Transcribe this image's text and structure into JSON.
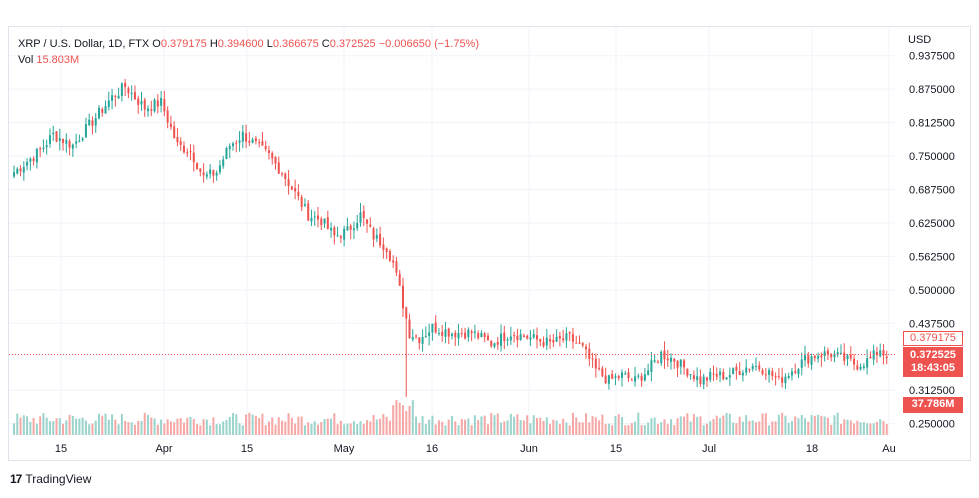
{
  "legend": {
    "symbol": "XRP / U.S. Dollar, 1D, FTX",
    "open_label": "O",
    "open_value": "0.379175",
    "high_label": "H",
    "high_value": "0.394600",
    "low_label": "L",
    "low_value": "0.366675",
    "close_label": "C",
    "close_value": "0.372525",
    "change": "−0.006650 (−1.75%)",
    "vol_label": "Vol",
    "vol_value": "15.803M"
  },
  "price_axis": {
    "currency": "USD",
    "last_value_tag": "0.379175",
    "close_tag": "0.372525",
    "countdown_tag": "18:43:05",
    "volume_tag": "37.786M"
  },
  "brand": {
    "name": "TradingView",
    "logo_text": "17"
  },
  "colors": {
    "up": "#26a69a",
    "down": "#ef5350",
    "up_volume": "#9bd4cd",
    "down_volume": "#f5a8a6",
    "grid": "#f0f3fa"
  },
  "chart_data": {
    "type": "candlestick",
    "x_ticks": [
      "15",
      "Apr",
      "15",
      "May",
      "16",
      "Jun",
      "15",
      "Jul",
      "18",
      "Au"
    ],
    "y_ticks": [
      "0.937500",
      "0.875000",
      "0.812500",
      "0.750000",
      "0.687500",
      "0.625000",
      "0.562500",
      "0.500000",
      "0.437500",
      "0.312500",
      "0.250000"
    ],
    "ylim": [
      0.24,
      0.95
    ],
    "last_price": 0.372525,
    "anchors": [
      [
        0,
        0.72
      ],
      [
        8,
        0.76
      ],
      [
        12,
        0.79
      ],
      [
        18,
        0.77
      ],
      [
        22,
        0.8
      ],
      [
        26,
        0.83
      ],
      [
        30,
        0.86
      ],
      [
        34,
        0.88
      ],
      [
        40,
        0.84
      ],
      [
        45,
        0.85
      ],
      [
        50,
        0.77
      ],
      [
        54,
        0.76
      ],
      [
        58,
        0.71
      ],
      [
        62,
        0.72
      ],
      [
        66,
        0.77
      ],
      [
        70,
        0.79
      ],
      [
        74,
        0.77
      ],
      [
        78,
        0.75
      ],
      [
        82,
        0.72
      ],
      [
        86,
        0.68
      ],
      [
        90,
        0.64
      ],
      [
        94,
        0.63
      ],
      [
        98,
        0.6
      ],
      [
        102,
        0.61
      ],
      [
        106,
        0.64
      ],
      [
        110,
        0.6
      ],
      [
        114,
        0.58
      ],
      [
        116,
        0.55
      ],
      [
        118,
        0.5
      ],
      [
        121,
        0.42
      ],
      [
        124,
        0.41
      ],
      [
        128,
        0.43
      ],
      [
        134,
        0.42
      ],
      [
        140,
        0.42
      ],
      [
        146,
        0.4
      ],
      [
        152,
        0.42
      ],
      [
        158,
        0.41
      ],
      [
        164,
        0.4
      ],
      [
        170,
        0.41
      ],
      [
        174,
        0.39
      ],
      [
        178,
        0.35
      ],
      [
        182,
        0.33
      ],
      [
        186,
        0.34
      ],
      [
        190,
        0.33
      ],
      [
        194,
        0.35
      ],
      [
        198,
        0.38
      ],
      [
        202,
        0.37
      ],
      [
        206,
        0.35
      ],
      [
        210,
        0.33
      ],
      [
        214,
        0.34
      ],
      [
        218,
        0.34
      ],
      [
        222,
        0.35
      ],
      [
        226,
        0.36
      ],
      [
        230,
        0.35
      ],
      [
        234,
        0.33
      ],
      [
        238,
        0.35
      ],
      [
        242,
        0.37
      ],
      [
        246,
        0.38
      ],
      [
        250,
        0.38
      ],
      [
        254,
        0.37
      ],
      [
        258,
        0.36
      ],
      [
        262,
        0.37
      ],
      [
        265,
        0.39
      ],
      [
        267,
        0.3725
      ]
    ],
    "volume_range": [
      0,
      9
    ]
  }
}
